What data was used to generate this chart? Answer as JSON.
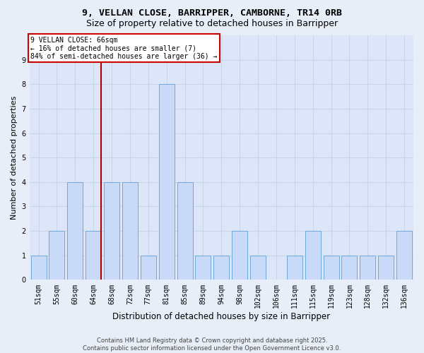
{
  "title1": "9, VELLAN CLOSE, BARRIPPER, CAMBORNE, TR14 0RB",
  "title2": "Size of property relative to detached houses in Barripper",
  "xlabel": "Distribution of detached houses by size in Barripper",
  "ylabel": "Number of detached properties",
  "categories": [
    "51sqm",
    "55sqm",
    "60sqm",
    "64sqm",
    "68sqm",
    "72sqm",
    "77sqm",
    "81sqm",
    "85sqm",
    "89sqm",
    "94sqm",
    "98sqm",
    "102sqm",
    "106sqm",
    "111sqm",
    "115sqm",
    "119sqm",
    "123sqm",
    "128sqm",
    "132sqm",
    "136sqm"
  ],
  "values": [
    1,
    2,
    4,
    2,
    4,
    4,
    1,
    8,
    4,
    1,
    1,
    2,
    1,
    0,
    1,
    2,
    1,
    1,
    1,
    1,
    2
  ],
  "bar_color": "#c9daf8",
  "bar_edgecolor": "#6fa8dc",
  "bar_linewidth": 0.7,
  "vline_x_index": 3,
  "vline_color": "#aa0000",
  "annotation_text": "9 VELLAN CLOSE: 66sqm\n← 16% of detached houses are smaller (7)\n84% of semi-detached houses are larger (36) →",
  "annotation_box_facecolor": "#ffffff",
  "annotation_box_edgecolor": "#cc0000",
  "annotation_fontsize": 7,
  "ylim": [
    0,
    10
  ],
  "yticks": [
    0,
    1,
    2,
    3,
    4,
    5,
    6,
    7,
    8,
    9,
    10
  ],
  "grid_color": "#c8d4e8",
  "bg_color": "#dce6f8",
  "fig_bg_color": "#e8eef8",
  "footer_text": "Contains HM Land Registry data © Crown copyright and database right 2025.\nContains public sector information licensed under the Open Government Licence v3.0.",
  "title1_fontsize": 9.5,
  "title2_fontsize": 9,
  "xlabel_fontsize": 8.5,
  "ylabel_fontsize": 8,
  "tick_fontsize": 7,
  "footer_fontsize": 6
}
